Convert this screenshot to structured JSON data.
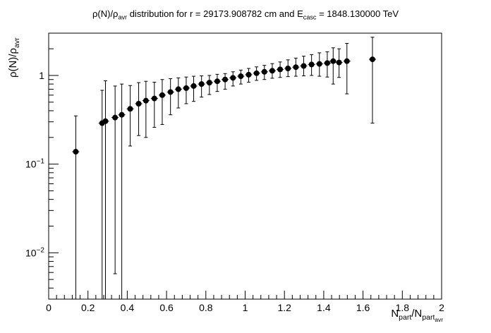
{
  "chart_data": {
    "type": "scatter",
    "title_parts": {
      "a": "ρ(N)/ρ",
      "a_sub": "avr",
      "b": " distribution for r = 29173.908782 cm and E",
      "b_sub": "casc",
      "c": " = 1848.130000 TeV"
    },
    "xlabel_parts": {
      "n": "N",
      "n_sub": "part",
      "slash": "/N",
      "d_sub": "part",
      "d_sub2": "avr"
    },
    "ylabel_parts": {
      "r": "ρ(N)/ρ",
      "r_sub": "avr"
    },
    "x_ticks": [
      "0",
      "0.2",
      "0.4",
      "0.6",
      "0.8",
      "1",
      "1.2",
      "1.4",
      "1.6",
      "1.8",
      "2"
    ],
    "y_ticks": [
      {
        "base": "10",
        "exp": "−2",
        "value": 0.01
      },
      {
        "base": "10",
        "exp": "−1",
        "value": 0.1
      },
      {
        "base": "",
        "exp": "",
        "label": "1",
        "value": 1
      }
    ],
    "xlim": [
      0,
      2
    ],
    "ylim": [
      0.003,
      3.0
    ],
    "yscale": "log",
    "color": "#000000",
    "points": [
      {
        "x": 0.138,
        "y": 0.138,
        "lo": 0.003,
        "hi": 0.35
      },
      {
        "x": 0.272,
        "y": 0.29,
        "lo": 0.003,
        "hi": 0.68
      },
      {
        "x": 0.289,
        "y": 0.305,
        "lo": 0.003,
        "hi": 0.87
      },
      {
        "x": 0.338,
        "y": 0.335,
        "lo": 0.0058,
        "hi": 0.76
      },
      {
        "x": 0.372,
        "y": 0.36,
        "lo": 0.003,
        "hi": 0.8
      },
      {
        "x": 0.415,
        "y": 0.42,
        "lo": 0.16,
        "hi": 0.77
      },
      {
        "x": 0.458,
        "y": 0.48,
        "lo": 0.21,
        "hi": 0.83
      },
      {
        "x": 0.495,
        "y": 0.52,
        "lo": 0.2,
        "hi": 0.86
      },
      {
        "x": 0.538,
        "y": 0.55,
        "lo": 0.26,
        "hi": 0.84
      },
      {
        "x": 0.578,
        "y": 0.6,
        "lo": 0.28,
        "hi": 0.9
      },
      {
        "x": 0.62,
        "y": 0.65,
        "lo": 0.36,
        "hi": 0.92
      },
      {
        "x": 0.66,
        "y": 0.7,
        "lo": 0.43,
        "hi": 0.94
      },
      {
        "x": 0.7,
        "y": 0.72,
        "lo": 0.48,
        "hi": 0.96
      },
      {
        "x": 0.738,
        "y": 0.76,
        "lo": 0.51,
        "hi": 0.98
      },
      {
        "x": 0.778,
        "y": 0.8,
        "lo": 0.57,
        "hi": 0.99
      },
      {
        "x": 0.818,
        "y": 0.83,
        "lo": 0.61,
        "hi": 1.0
      },
      {
        "x": 0.858,
        "y": 0.86,
        "lo": 0.66,
        "hi": 1.03
      },
      {
        "x": 0.898,
        "y": 0.9,
        "lo": 0.7,
        "hi": 1.05
      },
      {
        "x": 0.938,
        "y": 0.94,
        "lo": 0.76,
        "hi": 1.1
      },
      {
        "x": 0.978,
        "y": 0.98,
        "lo": 0.8,
        "hi": 1.15
      },
      {
        "x": 1.018,
        "y": 1.02,
        "lo": 0.84,
        "hi": 1.2
      },
      {
        "x": 1.058,
        "y": 1.06,
        "lo": 0.88,
        "hi": 1.25
      },
      {
        "x": 1.098,
        "y": 1.1,
        "lo": 0.9,
        "hi": 1.3
      },
      {
        "x": 1.138,
        "y": 1.13,
        "lo": 0.93,
        "hi": 1.36
      },
      {
        "x": 1.178,
        "y": 1.17,
        "lo": 0.95,
        "hi": 1.42
      },
      {
        "x": 1.218,
        "y": 1.2,
        "lo": 0.97,
        "hi": 1.5
      },
      {
        "x": 1.258,
        "y": 1.24,
        "lo": 0.98,
        "hi": 1.57
      },
      {
        "x": 1.298,
        "y": 1.28,
        "lo": 0.99,
        "hi": 1.65
      },
      {
        "x": 1.338,
        "y": 1.33,
        "lo": 1.0,
        "hi": 1.72
      },
      {
        "x": 1.378,
        "y": 1.35,
        "lo": 0.98,
        "hi": 1.8
      },
      {
        "x": 1.418,
        "y": 1.38,
        "lo": 0.96,
        "hi": 1.85
      },
      {
        "x": 1.448,
        "y": 1.45,
        "lo": 0.8,
        "hi": 2.05
      },
      {
        "x": 1.478,
        "y": 1.4,
        "lo": 0.95,
        "hi": 2.0
      },
      {
        "x": 1.518,
        "y": 1.45,
        "lo": 0.62,
        "hi": 2.3
      },
      {
        "x": 1.648,
        "y": 1.52,
        "lo": 0.29,
        "hi": 2.7
      }
    ]
  }
}
